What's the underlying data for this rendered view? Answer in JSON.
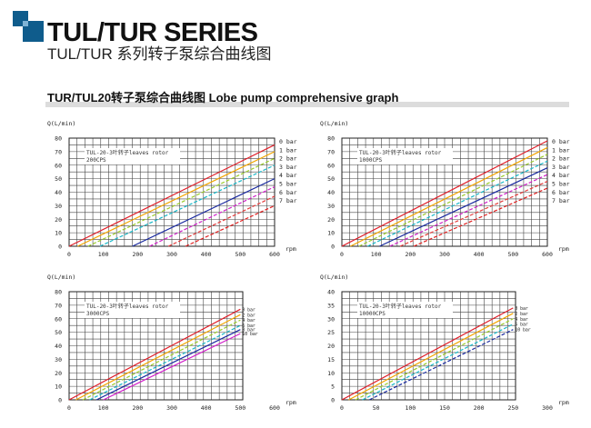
{
  "header": {
    "title": "TUL/TUR SERIES",
    "subtitle": "TUL/TUR 系列转子泵综合曲线图",
    "section_title": "TUR/TUL20转子泵综合曲线图 Lobe pump comprehensive graph"
  },
  "colors": {
    "grid": "#444444",
    "series": [
      "#e0202a",
      "#f2a500",
      "#9acb2a",
      "#18b8c8",
      "#1a2aa0",
      "#d020c8",
      "#e33a3a",
      "#e02020",
      "#3a8a3a"
    ]
  },
  "chart_data": [
    {
      "type": "line",
      "ylabel": "Q(L/min)",
      "xlabel": "rpm",
      "annotation": [
        "TUL-20-3叶转子leaves rotor",
        "200CPS"
      ],
      "xlim": [
        0,
        600
      ],
      "ylim": [
        0,
        80
      ],
      "xticks": [
        0,
        100,
        200,
        300,
        400,
        500,
        600
      ],
      "yticks": [
        0,
        10,
        20,
        30,
        40,
        50,
        60,
        70,
        80
      ],
      "series": [
        {
          "name": "0 bar",
          "x": [
            0,
            600
          ],
          "y": [
            0,
            75
          ],
          "dash": false
        },
        {
          "name": "1 bar",
          "x": [
            25,
            600
          ],
          "y": [
            0,
            70
          ],
          "dash": false
        },
        {
          "name": "2 bar",
          "x": [
            55,
            600
          ],
          "y": [
            0,
            65
          ],
          "dash": true
        },
        {
          "name": "3 bar",
          "x": [
            90,
            600
          ],
          "y": [
            0,
            60
          ],
          "dash": true
        },
        {
          "name": "4 bar",
          "x": [
            185,
            600
          ],
          "y": [
            0,
            50
          ],
          "dash": false
        },
        {
          "name": "5 bar",
          "x": [
            235,
            600
          ],
          "y": [
            0,
            44
          ],
          "dash": true
        },
        {
          "name": "6 bar",
          "x": [
            290,
            600
          ],
          "y": [
            0,
            37
          ],
          "dash": true
        },
        {
          "name": "7 bar",
          "x": [
            340,
            600
          ],
          "y": [
            0,
            30
          ],
          "dash": true
        }
      ]
    },
    {
      "type": "line",
      "ylabel": "Q(L/min)",
      "xlabel": "rpm",
      "annotation": [
        "TUL-20-3叶转子leaves rotor",
        "1000CPS"
      ],
      "xlim": [
        0,
        600
      ],
      "ylim": [
        0,
        80
      ],
      "xticks": [
        0,
        100,
        200,
        300,
        400,
        500,
        600
      ],
      "yticks": [
        0,
        10,
        20,
        30,
        40,
        50,
        60,
        70,
        80
      ],
      "series": [
        {
          "name": "0 bar",
          "x": [
            0,
            600
          ],
          "y": [
            0,
            78
          ],
          "dash": false
        },
        {
          "name": "1 bar",
          "x": [
            25,
            600
          ],
          "y": [
            0,
            73
          ],
          "dash": false
        },
        {
          "name": "2 bar",
          "x": [
            50,
            600
          ],
          "y": [
            0,
            68
          ],
          "dash": true
        },
        {
          "name": "3 bar",
          "x": [
            75,
            600
          ],
          "y": [
            0,
            63
          ],
          "dash": true
        },
        {
          "name": "4 bar",
          "x": [
            110,
            600
          ],
          "y": [
            0,
            58
          ],
          "dash": false
        },
        {
          "name": "5 bar",
          "x": [
            140,
            600
          ],
          "y": [
            0,
            53
          ],
          "dash": true
        },
        {
          "name": "6 bar",
          "x": [
            170,
            600
          ],
          "y": [
            0,
            48
          ],
          "dash": true
        },
        {
          "name": "7 bar",
          "x": [
            210,
            600
          ],
          "y": [
            0,
            43
          ],
          "dash": true
        }
      ]
    },
    {
      "type": "line",
      "ylabel": "Q(L/min)",
      "xlabel": "rpm",
      "annotation": [
        "TUL-20-3叶转子leaves rotor",
        "3000CPS"
      ],
      "xlim": [
        0,
        600
      ],
      "ylim": [
        0,
        80
      ],
      "xticks": [
        0,
        100,
        200,
        300,
        400,
        500,
        600
      ],
      "yticks": [
        0,
        10,
        20,
        30,
        40,
        50,
        60,
        70,
        80
      ],
      "series": [
        {
          "name": "0 bar",
          "x": [
            0,
            500
          ],
          "y": [
            0,
            67
          ],
          "dash": false
        },
        {
          "name": "2 bar",
          "x": [
            20,
            500
          ],
          "y": [
            0,
            63
          ],
          "dash": false
        },
        {
          "name": "4 bar",
          "x": [
            40,
            500
          ],
          "y": [
            0,
            59
          ],
          "dash": true
        },
        {
          "name": "6 bar",
          "x": [
            60,
            500
          ],
          "y": [
            0,
            55
          ],
          "dash": true
        },
        {
          "name": "8 bar",
          "x": [
            80,
            500
          ],
          "y": [
            0,
            52
          ],
          "dash": false
        },
        {
          "name": "10 bar",
          "x": [
            100,
            500
          ],
          "y": [
            0,
            49
          ],
          "dash": false
        }
      ]
    },
    {
      "type": "line",
      "ylabel": "Q(L/min)",
      "xlabel": "rpm",
      "annotation": [
        "TUL-20-3叶转子leaves rotor",
        "10000CPS"
      ],
      "xlim": [
        0,
        300
      ],
      "ylim": [
        0,
        40
      ],
      "xticks": [
        0,
        50,
        100,
        150,
        200,
        250,
        300
      ],
      "yticks": [
        0,
        5,
        10,
        15,
        20,
        25,
        30,
        35,
        40
      ],
      "series": [
        {
          "name": "0 bar",
          "x": [
            0,
            250
          ],
          "y": [
            0,
            34
          ],
          "dash": false
        },
        {
          "name": "2 bar",
          "x": [
            10,
            250
          ],
          "y": [
            0,
            32
          ],
          "dash": false
        },
        {
          "name": "4 bar",
          "x": [
            20,
            250
          ],
          "y": [
            0,
            30
          ],
          "dash": true
        },
        {
          "name": "6 bar",
          "x": [
            30,
            250
          ],
          "y": [
            0,
            28
          ],
          "dash": true
        },
        {
          "name": "10 bar",
          "x": [
            40,
            250
          ],
          "y": [
            0,
            26
          ],
          "dash": true
        }
      ]
    }
  ]
}
